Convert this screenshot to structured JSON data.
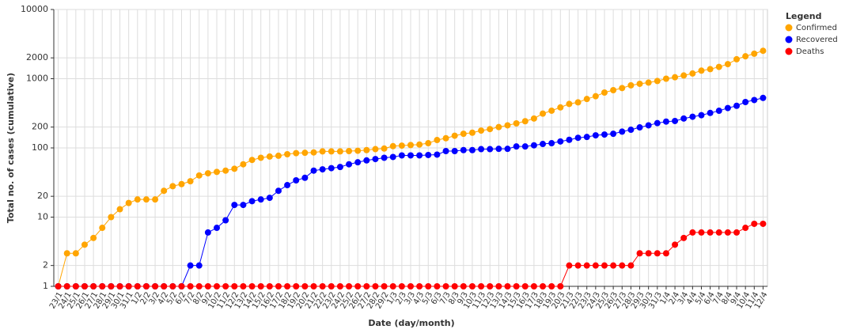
{
  "chart_data": {
    "type": "line",
    "x_label": "Date (day/month)",
    "y_label": "Total no. of cases (cumulative)",
    "legend_title": "Legend",
    "legend_position": "right",
    "log_scale": true,
    "grid": true,
    "ylim": [
      1,
      10000
    ],
    "yticks": [
      1,
      2,
      10,
      20,
      100,
      200,
      1000,
      2000,
      10000
    ],
    "categories": [
      "23/1",
      "24/1",
      "25/1",
      "26/1",
      "27/1",
      "28/1",
      "29/1",
      "30/1",
      "31/1",
      "1/2",
      "2/2",
      "3/2",
      "4/2",
      "5/2",
      "6/2",
      "7/2",
      "8/2",
      "9/2",
      "10/2",
      "11/2",
      "12/2",
      "13/2",
      "14/2",
      "15/2",
      "16/2",
      "17/2",
      "18/2",
      "19/2",
      "20/2",
      "21/2",
      "22/2",
      "23/2",
      "24/2",
      "25/2",
      "26/2",
      "27/2",
      "28/2",
      "29/2",
      "1/3",
      "2/3",
      "3/3",
      "4/3",
      "5/3",
      "6/3",
      "7/3",
      "8/3",
      "9/3",
      "10/3",
      "11/3",
      "12/3",
      "13/3",
      "14/3",
      "15/3",
      "16/3",
      "17/3",
      "18/3",
      "19/3",
      "20/3",
      "21/3",
      "22/3",
      "23/3",
      "24/3",
      "25/3",
      "26/3",
      "27/3",
      "28/3",
      "29/3",
      "30/3",
      "31/3",
      "1/4",
      "2/4",
      "3/4",
      "4/4",
      "5/4",
      "6/4",
      "7/4",
      "8/4",
      "9/4",
      "10/4",
      "11/4",
      "12/4"
    ],
    "series": [
      {
        "name": "Confirmed",
        "color": "#ffa500",
        "values": [
          1,
          3,
          3,
          4,
          5,
          7,
          10,
          13,
          16,
          18,
          18,
          18,
          24,
          28,
          30,
          33,
          40,
          43,
          45,
          47,
          50,
          58,
          67,
          72,
          75,
          77,
          81,
          84,
          85,
          86,
          89,
          89,
          89,
          90,
          91,
          93,
          96,
          98,
          106,
          108,
          110,
          112,
          117,
          130,
          138,
          150,
          160,
          166,
          178,
          187,
          200,
          212,
          226,
          243,
          266,
          313,
          345,
          385,
          432,
          455,
          509,
          558,
          631,
          683,
          732,
          802,
          844,
          879,
          926,
          1000,
          1049,
          1114,
          1189,
          1309,
          1375,
          1481,
          1623,
          1910,
          2108,
          2299,
          2532
        ]
      },
      {
        "name": "Recovered",
        "color": "#0000ff",
        "values": [
          1,
          1,
          1,
          1,
          1,
          1,
          1,
          1,
          1,
          1,
          1,
          1,
          1,
          1,
          1,
          2,
          2,
          6,
          7,
          9,
          15,
          15,
          17,
          18,
          19,
          24,
          29,
          34,
          37,
          47,
          49,
          51,
          53,
          58,
          62,
          66,
          69,
          72,
          74,
          78,
          78,
          78,
          79,
          80,
          90,
          90,
          93,
          93,
          96,
          96,
          97,
          97,
          105,
          105,
          109,
          114,
          117,
          124,
          131,
          140,
          144,
          152,
          156,
          160,
          172,
          183,
          198,
          212,
          228,
          240,
          245,
          266,
          282,
          297,
          320,
          344,
          377,
          406,
          460,
          492,
          528
        ]
      },
      {
        "name": "Deaths",
        "color": "#ff0000",
        "values": [
          1,
          1,
          1,
          1,
          1,
          1,
          1,
          1,
          1,
          1,
          1,
          1,
          1,
          1,
          1,
          1,
          1,
          1,
          1,
          1,
          1,
          1,
          1,
          1,
          1,
          1,
          1,
          1,
          1,
          1,
          1,
          1,
          1,
          1,
          1,
          1,
          1,
          1,
          1,
          1,
          1,
          1,
          1,
          1,
          1,
          1,
          1,
          1,
          1,
          1,
          1,
          1,
          1,
          1,
          1,
          1,
          1,
          1,
          2,
          2,
          2,
          2,
          2,
          2,
          2,
          2,
          3,
          3,
          3,
          3,
          4,
          5,
          6,
          6,
          6,
          6,
          6,
          6,
          7,
          8,
          8
        ]
      }
    ]
  }
}
